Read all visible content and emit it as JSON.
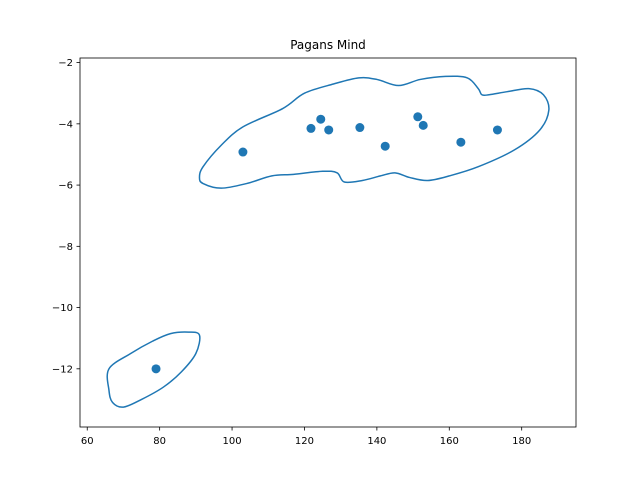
{
  "chart_data": {
    "type": "scatter",
    "title": "Pagans Mind",
    "xlabel": "",
    "ylabel": "",
    "xlim": [
      58,
      195
    ],
    "ylim": [
      -13.9,
      -1.85
    ],
    "xticks": [
      60,
      80,
      100,
      120,
      140,
      160,
      180
    ],
    "yticks": [
      -2,
      -4,
      -6,
      -8,
      -10,
      -12
    ],
    "xtick_labels": [
      "60",
      "80",
      "100",
      "120",
      "140",
      "160",
      "180"
    ],
    "ytick_labels": [
      "−2",
      "−4",
      "−6",
      "−8",
      "−10",
      "−12"
    ],
    "grid": false,
    "color": "#1f77b4",
    "points": [
      {
        "x": 79,
        "y": -12.0
      },
      {
        "x": 103,
        "y": -4.92
      },
      {
        "x": 121.8,
        "y": -4.15
      },
      {
        "x": 124.5,
        "y": -3.85
      },
      {
        "x": 126.7,
        "y": -4.2
      },
      {
        "x": 135.3,
        "y": -4.12
      },
      {
        "x": 142.3,
        "y": -4.73
      },
      {
        "x": 151.3,
        "y": -3.77
      },
      {
        "x": 152.8,
        "y": -4.05
      },
      {
        "x": 163.2,
        "y": -4.6
      },
      {
        "x": 173.3,
        "y": -4.2
      }
    ],
    "outlines": [
      {
        "name": "",
        "points": [
          [
            92,
            -5.4
          ],
          [
            97,
            -4.7
          ],
          [
            103,
            -4.1
          ],
          [
            114,
            -3.5
          ],
          [
            120,
            -3.0
          ],
          [
            128,
            -2.7
          ],
          [
            135,
            -2.5
          ],
          [
            140,
            -2.55
          ],
          [
            146,
            -2.75
          ],
          [
            152,
            -2.55
          ],
          [
            159,
            -2.45
          ],
          [
            165,
            -2.5
          ],
          [
            168,
            -2.85
          ],
          [
            169,
            -3.05
          ],
          [
            171,
            -3.05
          ],
          [
            176,
            -2.95
          ],
          [
            182,
            -2.85
          ],
          [
            186,
            -3.05
          ],
          [
            187.5,
            -3.55
          ],
          [
            185,
            -4.2
          ],
          [
            178,
            -4.85
          ],
          [
            168,
            -5.4
          ],
          [
            160,
            -5.7
          ],
          [
            154,
            -5.85
          ],
          [
            149,
            -5.75
          ],
          [
            145,
            -5.6
          ],
          [
            141,
            -5.7
          ],
          [
            136,
            -5.85
          ],
          [
            131,
            -5.9
          ],
          [
            129,
            -5.6
          ],
          [
            125,
            -5.55
          ],
          [
            117,
            -5.65
          ],
          [
            111,
            -5.7
          ],
          [
            104,
            -5.95
          ],
          [
            97,
            -6.1
          ],
          [
            92,
            -5.95
          ],
          [
            91,
            -5.75
          ],
          [
            92,
            -5.4
          ]
        ]
      },
      {
        "name": "",
        "points": [
          [
            66,
            -12.0
          ],
          [
            72,
            -11.5
          ],
          [
            78,
            -11.1
          ],
          [
            83,
            -10.85
          ],
          [
            88,
            -10.8
          ],
          [
            91,
            -10.9
          ],
          [
            90,
            -11.5
          ],
          [
            86,
            -12.1
          ],
          [
            81,
            -12.6
          ],
          [
            75,
            -13.0
          ],
          [
            70,
            -13.25
          ],
          [
            67,
            -13.1
          ],
          [
            66,
            -12.7
          ],
          [
            66,
            -12.0
          ]
        ]
      }
    ]
  }
}
